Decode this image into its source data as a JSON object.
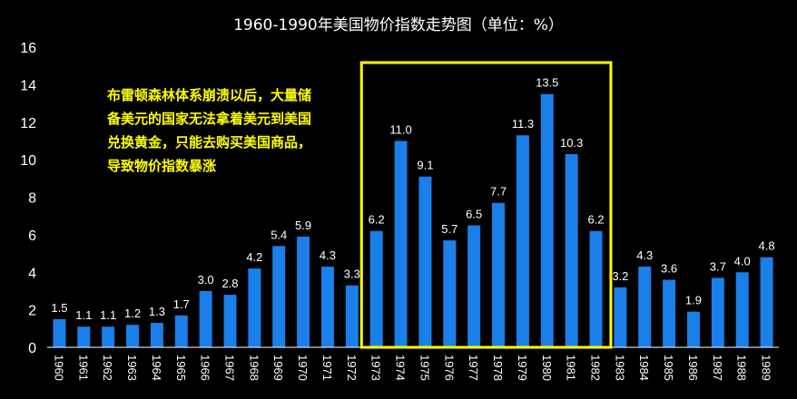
{
  "chart_data": {
    "type": "bar",
    "title": "1960-1990年美国物价指数走势图（单位：%）",
    "categories": [
      "1960",
      "1961",
      "1962",
      "1963",
      "1964",
      "1965",
      "1966",
      "1967",
      "1968",
      "1969",
      "1970",
      "1971",
      "1972",
      "1973",
      "1974",
      "1975",
      "1976",
      "1977",
      "1978",
      "1979",
      "1980",
      "1981",
      "1982",
      "1983",
      "1984",
      "1985",
      "1986",
      "1987",
      "1988",
      "1989"
    ],
    "values": [
      1.5,
      1.1,
      1.1,
      1.2,
      1.3,
      1.7,
      3.0,
      2.8,
      4.2,
      5.4,
      5.9,
      4.3,
      3.3,
      6.2,
      11.0,
      9.1,
      5.7,
      6.5,
      7.7,
      11.3,
      13.5,
      10.3,
      6.2,
      3.2,
      4.3,
      3.6,
      1.9,
      3.7,
      4.0,
      4.8
    ],
    "labels": [
      "1.5",
      "1.1",
      "1.1",
      "1.2",
      "1.3",
      "1.7",
      "3.0",
      "2.8",
      "4.2",
      "5.4",
      "5.9",
      "4.3",
      "3.3",
      "6.2",
      "11.0",
      "9.1",
      "5.7",
      "6.5",
      "7.7",
      "11.3",
      "13.5",
      "10.3",
      "6.2",
      "3.2",
      "4.3",
      "3.6",
      "1.9",
      "3.7",
      "4.0",
      "4.8"
    ],
    "yticks": [
      "0",
      "2",
      "4",
      "6",
      "8",
      "10",
      "12",
      "14",
      "16"
    ],
    "ylim": [
      0,
      16
    ],
    "grid": false,
    "highlight_range": [
      "1973",
      "1982"
    ],
    "annotation": [
      "布雷顿森林体系崩溃以后，大量储",
      "备美元的国家无法拿着美元到美国",
      "兑换黄金，只能去购买美国商品，",
      "导致物价指数暴涨"
    ]
  },
  "colors": {
    "background": "#000000",
    "bar": "#1a7fe8",
    "highlight_box": "#ffff00",
    "annotation_text": "#ffff00",
    "text": "#ffffff"
  }
}
